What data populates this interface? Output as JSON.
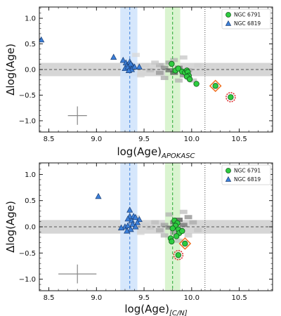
{
  "chart_data": [
    {
      "type": "scatter",
      "panel": "top",
      "xlabel_main": "log(Age)",
      "xlabel_sub": "APOKASC",
      "ylabel": "Δlog(Age)",
      "xlim": [
        8.4,
        10.85
      ],
      "ylim": [
        -1.22,
        1.22
      ],
      "xticks": [
        "8.5",
        "9.0",
        "9.5",
        "10.0",
        "10.5"
      ],
      "xtick_values": [
        8.5,
        9.0,
        9.5,
        10.0,
        10.5
      ],
      "yticks": [
        "1.0",
        "0.5",
        "0.0",
        "−0.5",
        "−1.0"
      ],
      "ytick_values": [
        1.0,
        0.5,
        0.0,
        -0.5,
        -1.0
      ],
      "grid": false,
      "legend": "top-right",
      "bands": {
        "gray_y": [
          -0.13,
          0.13
        ],
        "blue_x": [
          9.25,
          9.43
        ],
        "green_x": [
          9.72,
          9.88
        ]
      },
      "lines": {
        "blue_dashed_x": 9.35,
        "green_dashed_x": 9.8,
        "dotted_x": 10.14,
        "zero_dashed_y": 0.0
      },
      "colors": {
        "ngc6791": "#2ecc40",
        "ngc6819": "#3b7fd9",
        "highlight_marker": "#d33",
        "highlight_square": "#f07020",
        "blue_band": "#cfe3fb",
        "green_band": "#d4f2c8",
        "gray_band": "#d6d6d6"
      },
      "series": [
        {
          "name": "NGC 6791",
          "marker": "circle",
          "x": [
            9.79,
            9.83,
            9.86,
            9.9,
            9.93,
            9.95,
            9.96,
            9.97,
            9.95,
            9.98,
            10.05
          ],
          "y": [
            0.11,
            -0.02,
            0.02,
            -0.04,
            -0.06,
            -0.02,
            -0.05,
            -0.12,
            -0.14,
            -0.19,
            -0.28
          ]
        },
        {
          "name": "NGC 6819",
          "marker": "triangle",
          "x": [
            8.42,
            9.18,
            9.28,
            9.31,
            9.32,
            9.3,
            9.33,
            9.35,
            9.38,
            9.37,
            9.4,
            9.45,
            9.36,
            9.34
          ],
          "y": [
            0.58,
            0.24,
            0.18,
            0.13,
            0.08,
            0.02,
            0.05,
            0.15,
            0.07,
            0.0,
            0.05,
            0.05,
            0.11,
            -0.02
          ]
        }
      ],
      "highlighted": [
        {
          "x": 10.25,
          "y": -0.32
        },
        {
          "x": 10.41,
          "y": -0.54
        }
      ],
      "errorbar": {
        "x": 8.8,
        "y": -0.9,
        "xerr": 0.1,
        "yerr": 0.18
      },
      "density": [
        {
          "x": 9.65,
          "y": 0.1,
          "v": 0.3
        },
        {
          "x": 9.7,
          "y": 0.05,
          "v": 0.5
        },
        {
          "x": 9.75,
          "y": 0.0,
          "v": 0.7
        },
        {
          "x": 9.8,
          "y": -0.05,
          "v": 0.8
        },
        {
          "x": 9.85,
          "y": 0.05,
          "v": 0.6
        },
        {
          "x": 9.9,
          "y": -0.1,
          "v": 0.5
        },
        {
          "x": 9.6,
          "y": 0.15,
          "v": 0.2
        },
        {
          "x": 9.55,
          "y": 0.0,
          "v": 0.25
        },
        {
          "x": 9.7,
          "y": -0.15,
          "v": 0.35
        },
        {
          "x": 9.75,
          "y": 0.15,
          "v": 0.4
        },
        {
          "x": 9.8,
          "y": 0.2,
          "v": 0.3
        },
        {
          "x": 9.95,
          "y": 0.0,
          "v": 0.35
        },
        {
          "x": 10.0,
          "y": -0.2,
          "v": 0.25
        },
        {
          "x": 9.65,
          "y": -0.05,
          "v": 0.45
        },
        {
          "x": 9.85,
          "y": -0.2,
          "v": 0.3
        },
        {
          "x": 9.5,
          "y": 0.1,
          "v": 0.15
        },
        {
          "x": 9.45,
          "y": -0.1,
          "v": 0.12
        },
        {
          "x": 10.05,
          "y": 0.1,
          "v": 0.15
        },
        {
          "x": 9.9,
          "y": 0.25,
          "v": 0.2
        },
        {
          "x": 9.4,
          "y": 0.3,
          "v": 0.1
        }
      ]
    },
    {
      "type": "scatter",
      "panel": "bottom",
      "xlabel_main": "log(Age)",
      "xlabel_sub": "[C/N]",
      "ylabel": "Δlog(Age)",
      "xlim": [
        8.4,
        10.85
      ],
      "ylim": [
        -1.22,
        1.22
      ],
      "xticks": [
        "8.5",
        "9.0",
        "9.5",
        "10.0",
        "10.5"
      ],
      "xtick_values": [
        8.5,
        9.0,
        9.5,
        10.0,
        10.5
      ],
      "yticks": [
        "1.0",
        "0.5",
        "0.0",
        "−0.5",
        "−1.0"
      ],
      "ytick_values": [
        1.0,
        0.5,
        0.0,
        -0.5,
        -1.0
      ],
      "grid": false,
      "legend": "top-right",
      "bands": {
        "gray_y": [
          -0.13,
          0.13
        ],
        "blue_x": [
          9.25,
          9.43
        ],
        "green_x": [
          9.72,
          9.88
        ]
      },
      "lines": {
        "blue_dashed_x": 9.35,
        "green_dashed_x": 9.8,
        "dotted_x": 10.14,
        "zero_dashed_y": 0.0
      },
      "colors": {
        "ngc6791": "#2ecc40",
        "ngc6819": "#3b7fd9",
        "highlight_marker": "#d33",
        "highlight_square": "#f07020",
        "blue_band": "#cfe3fb",
        "green_band": "#d4f2c8",
        "gray_band": "#d6d6d6"
      },
      "series": [
        {
          "name": "NGC 6791",
          "marker": "circle",
          "x": [
            9.82,
            9.85,
            9.83,
            9.8,
            9.86,
            9.87,
            9.84,
            9.78,
            9.79,
            9.9
          ],
          "y": [
            0.12,
            0.07,
            0.02,
            -0.03,
            -0.05,
            -0.12,
            -0.18,
            -0.22,
            -0.28,
            -0.08
          ]
        },
        {
          "name": "NGC 6819",
          "marker": "triangle",
          "x": [
            9.02,
            9.35,
            9.35,
            9.33,
            9.37,
            9.39,
            9.41,
            9.45,
            9.43,
            9.3,
            9.33,
            9.38,
            9.41,
            9.36,
            9.32,
            9.26
          ],
          "y": [
            0.58,
            0.32,
            0.2,
            0.15,
            0.12,
            0.2,
            0.18,
            0.14,
            0.08,
            0.0,
            0.02,
            0.05,
            0.0,
            -0.05,
            -0.08,
            -0.02
          ]
        }
      ],
      "highlighted": [
        {
          "x": 9.93,
          "y": -0.32
        },
        {
          "x": 9.86,
          "y": -0.54
        }
      ],
      "errorbar": {
        "x": 8.8,
        "y": -0.9,
        "xerr": 0.2,
        "yerr": 0.18
      },
      "density": [
        {
          "x": 9.7,
          "y": 0.05,
          "v": 0.4
        },
        {
          "x": 9.75,
          "y": 0.0,
          "v": 0.55
        },
        {
          "x": 9.8,
          "y": 0.1,
          "v": 0.7
        },
        {
          "x": 9.85,
          "y": 0.15,
          "v": 0.8
        },
        {
          "x": 9.9,
          "y": 0.05,
          "v": 0.65
        },
        {
          "x": 9.95,
          "y": 0.2,
          "v": 0.5
        },
        {
          "x": 9.65,
          "y": -0.05,
          "v": 0.35
        },
        {
          "x": 9.6,
          "y": 0.1,
          "v": 0.25
        },
        {
          "x": 9.55,
          "y": 0.0,
          "v": 0.2
        },
        {
          "x": 9.7,
          "y": -0.15,
          "v": 0.3
        },
        {
          "x": 9.8,
          "y": -0.1,
          "v": 0.45
        },
        {
          "x": 10.0,
          "y": 0.1,
          "v": 0.35
        },
        {
          "x": 9.9,
          "y": 0.3,
          "v": 0.25
        },
        {
          "x": 9.5,
          "y": 0.05,
          "v": 0.15
        },
        {
          "x": 9.45,
          "y": -0.1,
          "v": 0.12
        },
        {
          "x": 10.05,
          "y": -0.05,
          "v": 0.2
        },
        {
          "x": 9.85,
          "y": -0.25,
          "v": 0.25
        },
        {
          "x": 9.75,
          "y": 0.25,
          "v": 0.3
        },
        {
          "x": 9.4,
          "y": 0.2,
          "v": 0.1
        },
        {
          "x": 9.95,
          "y": -0.15,
          "v": 0.2
        }
      ]
    }
  ]
}
